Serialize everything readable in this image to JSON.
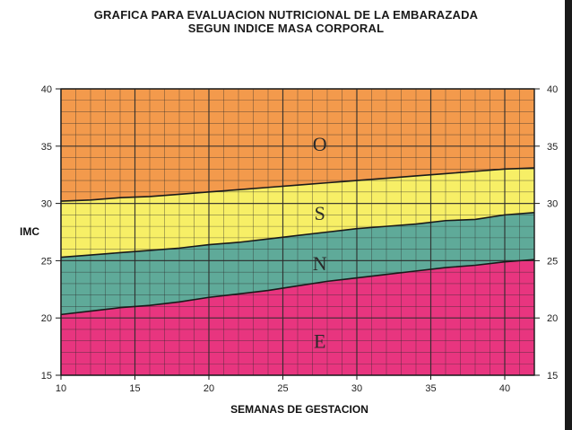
{
  "title_line_1": "GRAFICA PARA EVALUACION NUTRICIONAL DE LA EMBARAZADA",
  "title_line_2": "SEGUN INDICE MASA CORPORAL",
  "chart_data": {
    "type": "area",
    "title": "GRAFICA PARA EVALUACION NUTRICIONAL DE LA EMBARAZADA SEGUN INDICE MASA CORPORAL",
    "xlabel": "SEMANAS DE GESTACION",
    "ylabel": "IMC",
    "xlim": [
      10,
      42
    ],
    "ylim": [
      15,
      40
    ],
    "x_ticks": [
      10,
      15,
      20,
      25,
      30,
      35,
      40
    ],
    "y_ticks": [
      15,
      20,
      25,
      30,
      35,
      40
    ],
    "grid": true,
    "x": [
      10,
      12,
      14,
      16,
      18,
      20,
      22,
      24,
      26,
      28,
      30,
      32,
      34,
      36,
      38,
      40,
      42
    ],
    "boundaries": [
      {
        "between": [
          "E",
          "N"
        ],
        "values": [
          20.3,
          20.6,
          20.9,
          21.1,
          21.4,
          21.8,
          22.1,
          22.4,
          22.8,
          23.2,
          23.5,
          23.8,
          24.1,
          24.4,
          24.6,
          24.9,
          25.1
        ]
      },
      {
        "between": [
          "N",
          "S"
        ],
        "values": [
          25.3,
          25.5,
          25.7,
          25.9,
          26.1,
          26.4,
          26.6,
          26.9,
          27.2,
          27.5,
          27.8,
          28.0,
          28.2,
          28.5,
          28.6,
          29.0,
          29.2
        ]
      },
      {
        "between": [
          "S",
          "O"
        ],
        "values": [
          30.2,
          30.3,
          30.5,
          30.6,
          30.8,
          31.0,
          31.2,
          31.4,
          31.6,
          31.8,
          32.0,
          32.2,
          32.4,
          32.6,
          32.8,
          33.0,
          33.1
        ]
      }
    ],
    "zones": [
      {
        "label": "E",
        "color": "#e8357f",
        "label_x": 27.5,
        "label_y": 18
      },
      {
        "label": "N",
        "color": "#5faa99",
        "label_x": 27.5,
        "label_y": 24.8
      },
      {
        "label": "S",
        "color": "#f7ef66",
        "label_x": 27.5,
        "label_y": 29.2
      },
      {
        "label": "O",
        "color": "#f39a4c",
        "label_x": 27.5,
        "label_y": 35.2
      }
    ],
    "grid_color": "#2b2b2b"
  }
}
